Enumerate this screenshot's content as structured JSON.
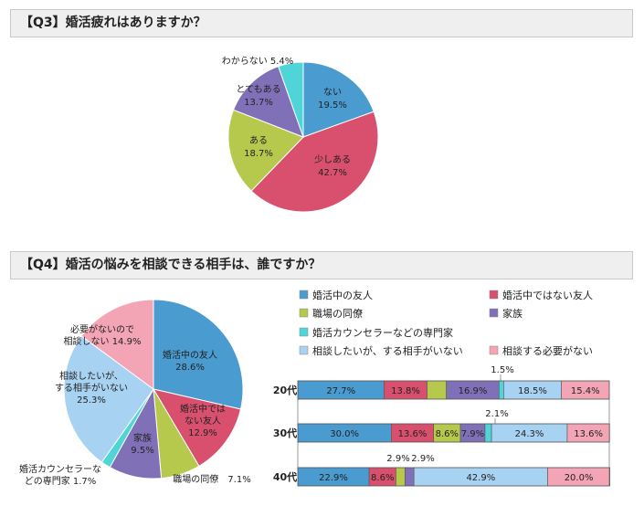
{
  "colors": {
    "blue": "#4a9bcf",
    "red": "#d8506e",
    "olive": "#b6c94c",
    "purple": "#8070b8",
    "teal": "#4fd4d8",
    "lightblue": "#a8d2f2",
    "pink": "#f3a5b5"
  },
  "q3": {
    "title": "【Q3】婚活疲れはありますか？",
    "chart_data": {
      "type": "pie",
      "slices": [
        {
          "name": "ない",
          "value": 19.5,
          "label": "19.5%",
          "color": "#4a9bcf"
        },
        {
          "name": "少しある",
          "value": 42.7,
          "label": "42.7%",
          "color": "#d8506e"
        },
        {
          "name": "ある",
          "value": 18.7,
          "label": "18.7%",
          "color": "#b6c94c"
        },
        {
          "name": "とてもある",
          "value": 13.7,
          "label": "13.7%",
          "color": "#8070b8"
        },
        {
          "name": "わからない",
          "value": 5.4,
          "label": "5.4%",
          "color": "#4fd4d8"
        }
      ]
    }
  },
  "q4": {
    "title": "【Q4】婚活の悩みを相談できる相手は、誰ですか？",
    "pie": {
      "type": "pie",
      "slices": [
        {
          "name": "婚活中の友人",
          "value": 28.6,
          "label": "28.6%",
          "color": "#4a9bcf"
        },
        {
          "name": "婚活中ではない友人",
          "value": 12.9,
          "label": "12.9%",
          "color": "#d8506e"
        },
        {
          "name": "職場の同僚",
          "value": 7.1,
          "label": "7.1%",
          "color": "#b6c94c"
        },
        {
          "name": "家族",
          "value": 9.5,
          "label": "9.5%",
          "color": "#8070b8"
        },
        {
          "name": "婚活カウンセラーなどの専門家",
          "value": 1.7,
          "label": "1.7%",
          "color": "#4fd4d8"
        },
        {
          "name": "相談したいが、する相手がいない",
          "value": 25.3,
          "label": "25.3%",
          "color": "#a8d2f2"
        },
        {
          "name": "必要がないので相談しない",
          "value": 14.9,
          "label": "14.9%",
          "color": "#f3a5b5"
        }
      ],
      "label_text": {
        "s0": [
          "婚活中の友人",
          "28.6%"
        ],
        "s1": [
          "婚活中では",
          "ない友人",
          "12.9%"
        ],
        "s2": [
          "職場の同僚　7.1%"
        ],
        "s3": [
          "家族",
          "9.5%"
        ],
        "s4": [
          "婚活カウンセラーな",
          "どの専門家 1.7%"
        ],
        "s5": [
          "相談したいが、",
          "する相手がいない",
          "25.3%"
        ],
        "s6": [
          "必要がないので",
          "相談しない 14.9%"
        ]
      }
    },
    "legend": [
      {
        "label": "婚活中の友人",
        "color": "#4a9bcf"
      },
      {
        "label": "婚活中ではない友人",
        "color": "#d8506e"
      },
      {
        "label": "職場の同僚",
        "color": "#b6c94c"
      },
      {
        "label": "家族",
        "color": "#8070b8"
      },
      {
        "label": "婚活カウンセラーなどの専門家",
        "color": "#4fd4d8"
      },
      {
        "label": "相談したいが、する相手がいない",
        "color": "#a8d2f2"
      },
      {
        "label": "相談する必要がない",
        "color": "#f3a5b5"
      }
    ],
    "bars": {
      "type": "bar",
      "stacked": true,
      "categories": [
        "20代",
        "30代",
        "40代"
      ],
      "series": [
        {
          "name": "婚活中の友人",
          "values": [
            27.7,
            30.0,
            22.9
          ],
          "labels": [
            "27.7%",
            "30.0%",
            "22.9%"
          ]
        },
        {
          "name": "婚活中ではない友人",
          "values": [
            13.8,
            13.6,
            8.6
          ],
          "labels": [
            "13.8%",
            "13.6%",
            "8.6%"
          ]
        },
        {
          "name": "職場の同僚",
          "values": [
            6.2,
            8.6,
            2.9
          ],
          "labels": [
            "6.2%",
            "8.6%",
            "2.9%"
          ]
        },
        {
          "name": "家族",
          "values": [
            16.9,
            7.9,
            2.9
          ],
          "labels": [
            "16.9%",
            "7.9%",
            "2.9%"
          ]
        },
        {
          "name": "婚活カウンセラーなどの専門家",
          "values": [
            1.5,
            2.1,
            0.0
          ],
          "labels": [
            "1.5%",
            "2.1%",
            ""
          ]
        },
        {
          "name": "相談したいが、する相手がいない",
          "values": [
            18.5,
            24.3,
            42.9
          ],
          "labels": [
            "18.5%",
            "24.3%",
            "42.9%"
          ]
        },
        {
          "name": "相談する必要がない",
          "values": [
            15.4,
            13.6,
            20.0
          ],
          "labels": [
            "15.4%",
            "13.6%",
            "20.0%"
          ]
        }
      ]
    }
  }
}
